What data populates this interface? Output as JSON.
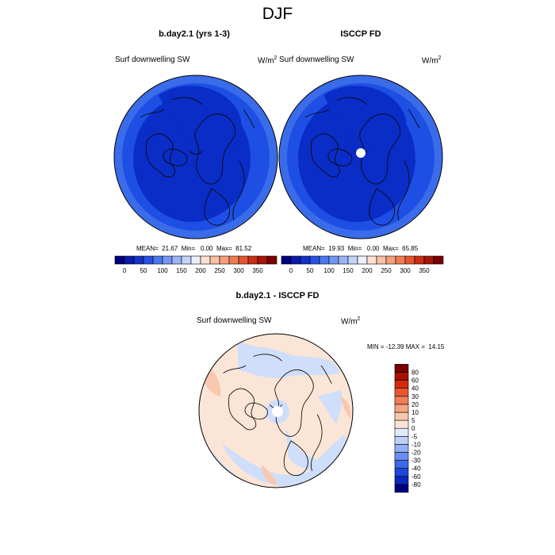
{
  "figure": {
    "title": "DJF"
  },
  "panels": [
    {
      "title": "b.day2.1 (yrs 1-3)",
      "variable": "Surf downwelling SW",
      "units_base": "W/m",
      "units_exp": "2",
      "stats": "MEAN=  21.67  Min=   0.00  Max=  81.52"
    },
    {
      "title": "ISCCP FD",
      "variable": "Surf downwelling SW",
      "units_base": "W/m",
      "units_exp": "2",
      "stats": "MEAN=  19.93  Min=   0.00  Max=  65.85"
    },
    {
      "title": "b.day2.1 - ISCCP FD",
      "variable": "Surf downwelling SW",
      "units_base": "W/m",
      "units_exp": "2",
      "stats": "MIN = -12.39 MAX =  14.15"
    }
  ],
  "abs_colorbar": {
    "colors": [
      "#00007f",
      "#0a1aa8",
      "#1432c8",
      "#2850e6",
      "#4b78ee",
      "#7396f2",
      "#9bb4f5",
      "#c3d4f8",
      "#ebf0fa",
      "#fde0d2",
      "#f9c0a6",
      "#f59f7d",
      "#ef7c55",
      "#e45530",
      "#cc2d14",
      "#a8150a",
      "#7a0000"
    ],
    "labels": [
      "0",
      "50",
      "100",
      "150",
      "200",
      "250",
      "300",
      "350"
    ]
  },
  "diff_colorbar": {
    "colors": [
      "#00007f",
      "#0a28be",
      "#1e46dc",
      "#3c69ea",
      "#6a8ef0",
      "#94b0f4",
      "#bcd0f8",
      "#e0ebfb",
      "#fbe4d6",
      "#f8c8ad",
      "#f5a582",
      "#f07e58",
      "#e9552e",
      "#d22c10",
      "#a81000",
      "#7a0000"
    ],
    "labels": [
      "-80",
      "-60",
      "-40",
      "-30",
      "-20",
      "-10",
      "-5",
      "0",
      "5",
      "10",
      "20",
      "30",
      "40",
      "60",
      "80"
    ]
  },
  "map_colors": {
    "dark_blue": "#0a2dc8",
    "mid_blue": "#1e4fe4",
    "edge_blue": "#3a6be9",
    "light_blue": "#cfdefa",
    "pale_orange": "#fbe5d6",
    "light_orange": "#f8c8ae"
  }
}
